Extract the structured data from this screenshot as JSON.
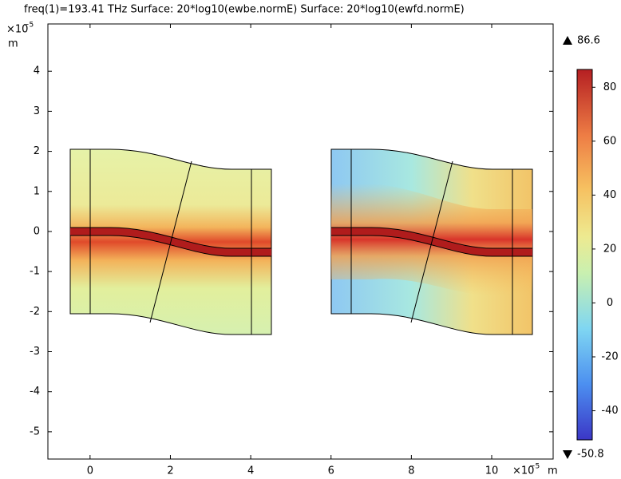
{
  "chart_data": {
    "type": "surface",
    "title": "freq(1)=193.41 THz  Surface: 20*log10(ewbe.normE)  Surface: 20*log10(ewfd.normE)",
    "xlim": [
      -1.05,
      11.53
    ],
    "xticks": [
      0,
      2,
      4,
      6,
      8,
      10
    ],
    "ylim": [
      -5.68,
      5.18
    ],
    "yticks": [
      -5,
      -4,
      -3,
      -2,
      -1,
      0,
      1,
      2,
      3,
      4
    ],
    "x_axis": {
      "multiplier": "×10",
      "exponent": "−5",
      "unit": "m"
    },
    "y_axis": {
      "multiplier": "×10",
      "exponent": "−5",
      "unit": "m"
    },
    "colorbar": {
      "lim": [
        -50.8,
        86.6
      ],
      "ticks": [
        -40,
        -20,
        0,
        20,
        40,
        60,
        80
      ],
      "max": 86.6,
      "min": -50.8
    }
  }
}
